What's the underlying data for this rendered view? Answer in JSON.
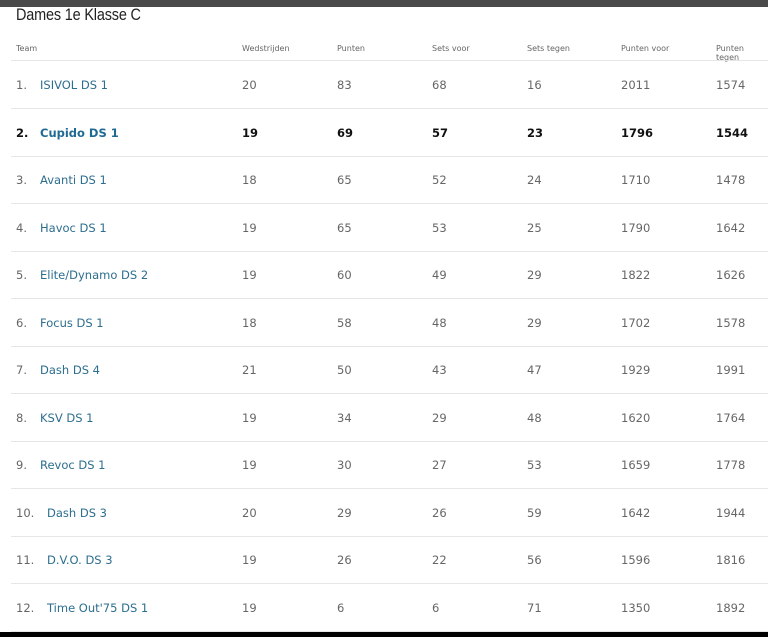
{
  "title": "Dames 1e Klasse C",
  "columns": [
    "Team",
    "Wedstrijden",
    "Punten",
    "Sets voor",
    "Sets tegen",
    "Punten voor",
    "Punten tegen"
  ],
  "highlight_rank": "2.",
  "colors": {
    "team_link": "#2c6e8e",
    "text": "#666666",
    "highlight_text": "#111111"
  },
  "rows": [
    {
      "rank": "1.",
      "team": "ISIVOL DS 1",
      "wedstrijden": "20",
      "punten": "83",
      "sets_voor": "68",
      "sets_tegen": "16",
      "punten_voor": "2011",
      "punten_tegen": "1574"
    },
    {
      "rank": "2.",
      "team": "Cupido DS 1",
      "wedstrijden": "19",
      "punten": "69",
      "sets_voor": "57",
      "sets_tegen": "23",
      "punten_voor": "1796",
      "punten_tegen": "1544"
    },
    {
      "rank": "3.",
      "team": "Avanti DS 1",
      "wedstrijden": "18",
      "punten": "65",
      "sets_voor": "52",
      "sets_tegen": "24",
      "punten_voor": "1710",
      "punten_tegen": "1478"
    },
    {
      "rank": "4.",
      "team": "Havoc DS 1",
      "wedstrijden": "19",
      "punten": "65",
      "sets_voor": "53",
      "sets_tegen": "25",
      "punten_voor": "1790",
      "punten_tegen": "1642"
    },
    {
      "rank": "5.",
      "team": "Elite/Dynamo DS 2",
      "wedstrijden": "19",
      "punten": "60",
      "sets_voor": "49",
      "sets_tegen": "29",
      "punten_voor": "1822",
      "punten_tegen": "1626"
    },
    {
      "rank": "6.",
      "team": "Focus DS 1",
      "wedstrijden": "18",
      "punten": "58",
      "sets_voor": "48",
      "sets_tegen": "29",
      "punten_voor": "1702",
      "punten_tegen": "1578"
    },
    {
      "rank": "7.",
      "team": "Dash DS 4",
      "wedstrijden": "21",
      "punten": "50",
      "sets_voor": "43",
      "sets_tegen": "47",
      "punten_voor": "1929",
      "punten_tegen": "1991"
    },
    {
      "rank": "8.",
      "team": "KSV DS 1",
      "wedstrijden": "19",
      "punten": "34",
      "sets_voor": "29",
      "sets_tegen": "48",
      "punten_voor": "1620",
      "punten_tegen": "1764"
    },
    {
      "rank": "9.",
      "team": "Revoc DS 1",
      "wedstrijden": "19",
      "punten": "30",
      "sets_voor": "27",
      "sets_tegen": "53",
      "punten_voor": "1659",
      "punten_tegen": "1778"
    },
    {
      "rank": "10.",
      "team": "Dash DS 3",
      "wedstrijden": "20",
      "punten": "29",
      "sets_voor": "26",
      "sets_tegen": "59",
      "punten_voor": "1642",
      "punten_tegen": "1944"
    },
    {
      "rank": "11.",
      "team": "D.V.O. DS 3",
      "wedstrijden": "19",
      "punten": "26",
      "sets_voor": "22",
      "sets_tegen": "56",
      "punten_voor": "1596",
      "punten_tegen": "1816"
    },
    {
      "rank": "12.",
      "team": "Time Out'75 DS 1",
      "wedstrijden": "19",
      "punten": "6",
      "sets_voor": "6",
      "sets_tegen": "71",
      "punten_voor": "1350",
      "punten_tegen": "1892"
    }
  ]
}
